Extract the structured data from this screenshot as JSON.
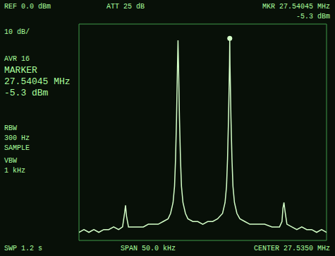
{
  "chart_data": {
    "type": "line",
    "annotations": [
      "REF 0.0 dBm",
      "ATT 25 dB",
      "MKR 27.54045 MHz",
      "-5.3 dBm",
      "10 dB/",
      "AVR 16",
      "MARKER",
      "27.54045 MHz",
      "-5.3 dBm",
      "RBW",
      "300 Hz",
      "SAMPLE",
      "VBW",
      "1 kHz",
      "SWP 1.2 s",
      "SPAN 50.0 kHz",
      "CENTER 27.5350 MHz"
    ],
    "x": [
      27.51,
      27.511,
      27.512,
      27.513,
      27.514,
      27.515,
      27.516,
      27.517,
      27.518,
      27.5188,
      27.5192,
      27.5194,
      27.5196,
      27.52,
      27.521,
      27.522,
      27.523,
      27.524,
      27.525,
      27.526,
      27.527,
      27.528,
      27.5285,
      27.529,
      27.5293,
      27.5295,
      27.5297,
      27.5299,
      27.53,
      27.5301,
      27.5303,
      27.5305,
      27.5307,
      27.531,
      27.5315,
      27.532,
      27.533,
      27.534,
      27.535,
      27.536,
      27.537,
      27.538,
      27.539,
      27.5395,
      27.5398,
      27.54,
      27.5402,
      27.5404,
      27.54045,
      27.5405,
      27.5407,
      27.5409,
      27.5411,
      27.5414,
      27.5419,
      27.5425,
      27.5435,
      27.5445,
      27.546,
      27.5475,
      27.549,
      27.5505,
      27.551,
      27.5512,
      27.5514,
      27.5516,
      27.552,
      27.553,
      27.554,
      27.555,
      27.556,
      27.557,
      27.558,
      27.559,
      27.56
    ],
    "values": [
      -77,
      -76,
      -77,
      -76,
      -77,
      -76,
      -76,
      -75,
      -76,
      -75,
      -70,
      -67,
      -71,
      -75,
      -75,
      -75,
      -75,
      -74,
      -74,
      -74,
      -73,
      -72,
      -70,
      -66,
      -60,
      -50,
      -35,
      -15,
      -6,
      -15,
      -35,
      -50,
      -60,
      -66,
      -70,
      -72,
      -73,
      -73,
      -74,
      -73,
      -73,
      -72,
      -70,
      -66,
      -60,
      -50,
      -35,
      -15,
      -5.3,
      -15,
      -35,
      -50,
      -60,
      -66,
      -70,
      -72,
      -73,
      -74,
      -74,
      -74,
      -75,
      -75,
      -73,
      -68,
      -66,
      -69,
      -74,
      -75,
      -76,
      -75,
      -76,
      -76,
      -77,
      -76,
      -77
    ],
    "color": "#d4ffc8",
    "xlim": [
      27.51,
      27.56
    ],
    "xticks": [
      27.51,
      27.515,
      27.52,
      27.525,
      27.53,
      27.535,
      27.54,
      27.545,
      27.55,
      27.555,
      27.56
    ],
    "ylim": [
      -80,
      0
    ],
    "yticks": [
      -80,
      -70,
      -60,
      -50,
      -40,
      -30,
      -20,
      -10,
      0
    ],
    "grid": true,
    "tick_labels": false,
    "marker_x": 27.54045,
    "marker_y": -5.3
  }
}
